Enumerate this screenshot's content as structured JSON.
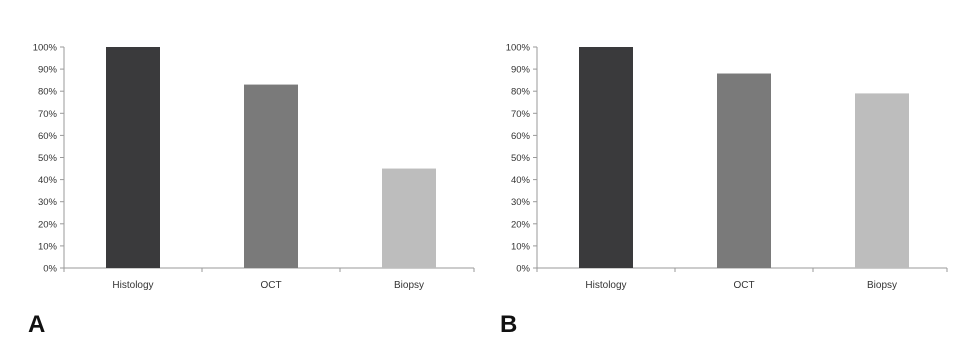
{
  "chart_data": [
    {
      "type": "bar",
      "panel_label": "A",
      "categories": [
        "Histology",
        "OCT",
        "Biopsy"
      ],
      "values": [
        100,
        83,
        45
      ],
      "unit": "%",
      "ylim": [
        0,
        100
      ],
      "yticks": [
        "0%",
        "10%",
        "20%",
        "30%",
        "40%",
        "50%",
        "60%",
        "70%",
        "80%",
        "90%",
        "100%"
      ],
      "grid": false,
      "legend": "none",
      "colors": [
        "#3a3a3c",
        "#7a7a7a",
        "#bdbdbd"
      ]
    },
    {
      "type": "bar",
      "panel_label": "B",
      "categories": [
        "Histology",
        "OCT",
        "Biopsy"
      ],
      "values": [
        100,
        88,
        79
      ],
      "unit": "%",
      "ylim": [
        0,
        100
      ],
      "yticks": [
        "0%",
        "10%",
        "20%",
        "30%",
        "40%",
        "50%",
        "60%",
        "70%",
        "80%",
        "90%",
        "100%"
      ],
      "grid": false,
      "legend": "none",
      "colors": [
        "#3a3a3c",
        "#7a7a7a",
        "#bdbdbd"
      ]
    }
  ]
}
